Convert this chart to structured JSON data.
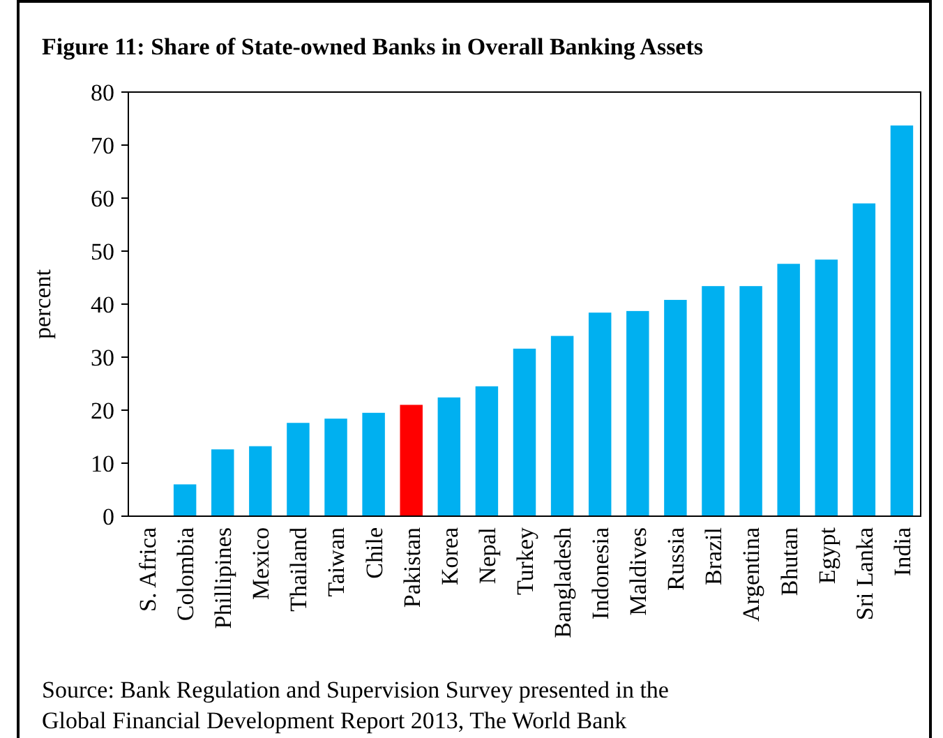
{
  "chart_data": {
    "type": "bar",
    "title": "Figure 11: Share of State-owned Banks in Overall Banking Assets",
    "ylabel": "percent",
    "categories": [
      "S. Africa",
      "Colombia",
      "Phillipines",
      "Mexico",
      "Thailand",
      "Taiwan",
      "Chile",
      "Pakistan",
      "Korea",
      "Nepal",
      "Turkey",
      "Bangladesh",
      "Indonesia",
      "Maldives",
      "Russia",
      "Brazil",
      "Argentina",
      "Bhutan",
      "Egypt",
      "Sri Lanka",
      "India"
    ],
    "values": [
      0,
      6,
      12.6,
      13.2,
      17.6,
      18.4,
      19.5,
      21,
      22.4,
      24.5,
      31.6,
      34,
      38.4,
      38.7,
      40.8,
      43.4,
      43.4,
      47.6,
      48.4,
      59,
      73.7
    ],
    "colors": [
      "#00b0f0",
      "#00b0f0",
      "#00b0f0",
      "#00b0f0",
      "#00b0f0",
      "#00b0f0",
      "#00b0f0",
      "#ff0000",
      "#00b0f0",
      "#00b0f0",
      "#00b0f0",
      "#00b0f0",
      "#00b0f0",
      "#00b0f0",
      "#00b0f0",
      "#00b0f0",
      "#00b0f0",
      "#00b0f0",
      "#00b0f0",
      "#00b0f0",
      "#00b0f0"
    ],
    "ylim": [
      0,
      80
    ],
    "yticks": [
      0,
      10,
      20,
      30,
      40,
      50,
      60,
      70,
      80
    ],
    "annotations": [
      "Source: Bank Regulation and Supervision Survey presented in the Global Financial Development Report 2013, The World Bank"
    ]
  }
}
